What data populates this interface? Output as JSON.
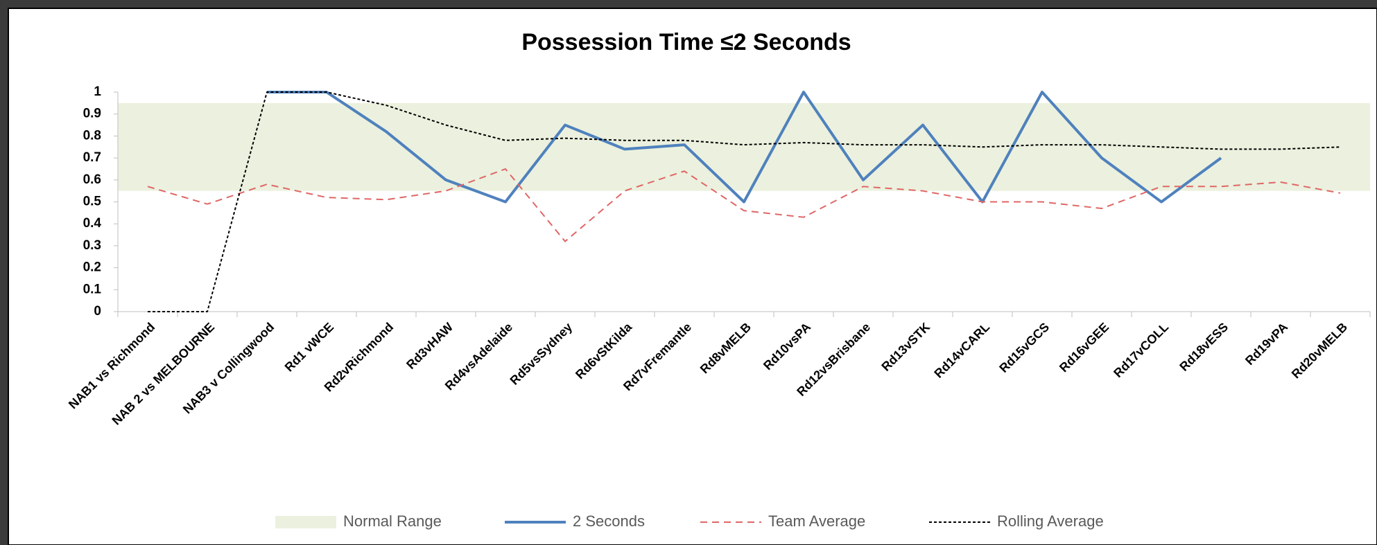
{
  "chart_data": {
    "type": "line",
    "title": "Possession Time ≤2 Seconds",
    "categories": [
      "NAB1 vs Richmond",
      "NAB 2 vs MELBOURNE",
      "NAB3 v Collingwood",
      "Rd1 vWCE",
      "Rd2vRichmond",
      "Rd3vHAW",
      "Rd4vsAdelaide",
      "Rd5vsSydney",
      "Rd6vStKilda",
      "Rd7vFremantle",
      "Rd8vMELB",
      "Rd10vsPA",
      "Rd12vsBrisbane",
      "Rd13vSTK",
      "Rd14vCARL",
      "Rd15vGCS",
      "Rd16vGEE",
      "Rd17vCOLL",
      "Rd18vESS",
      "Rd19vPA",
      "Rd20vMELB"
    ],
    "series": [
      {
        "name": "Normal Range",
        "color": "#ebf1de",
        "range": [
          0.55,
          0.95
        ]
      },
      {
        "name": "2 Seconds",
        "color": "#4f81bd",
        "values": [
          null,
          null,
          1,
          1,
          0.82,
          0.6,
          0.5,
          0.85,
          0.74,
          0.76,
          0.5,
          1,
          0.6,
          0.85,
          0.5,
          1,
          0.7,
          0.5,
          0.7,
          null,
          null
        ]
      },
      {
        "name": "Team Average",
        "color": "#e06666",
        "dashed": true,
        "values": [
          0.57,
          0.49,
          0.58,
          0.52,
          0.51,
          0.55,
          0.65,
          0.32,
          0.55,
          0.64,
          0.46,
          0.43,
          0.57,
          0.55,
          0.5,
          0.5,
          0.47,
          0.57,
          0.57,
          0.59,
          0.54
        ]
      },
      {
        "name": "Rolling Average",
        "color": "#000000",
        "dashed": true,
        "values": [
          0,
          0,
          1,
          1,
          0.94,
          0.85,
          0.78,
          0.79,
          0.78,
          0.78,
          0.76,
          0.77,
          0.76,
          0.76,
          0.75,
          0.76,
          0.76,
          0.75,
          0.74,
          0.74,
          0.75
        ]
      }
    ],
    "ylim": [
      0,
      1
    ],
    "yticks": [
      0,
      0.1,
      0.2,
      0.3,
      0.4,
      0.5,
      0.6,
      0.7,
      0.8,
      0.9,
      1
    ],
    "legend": "bottom"
  }
}
